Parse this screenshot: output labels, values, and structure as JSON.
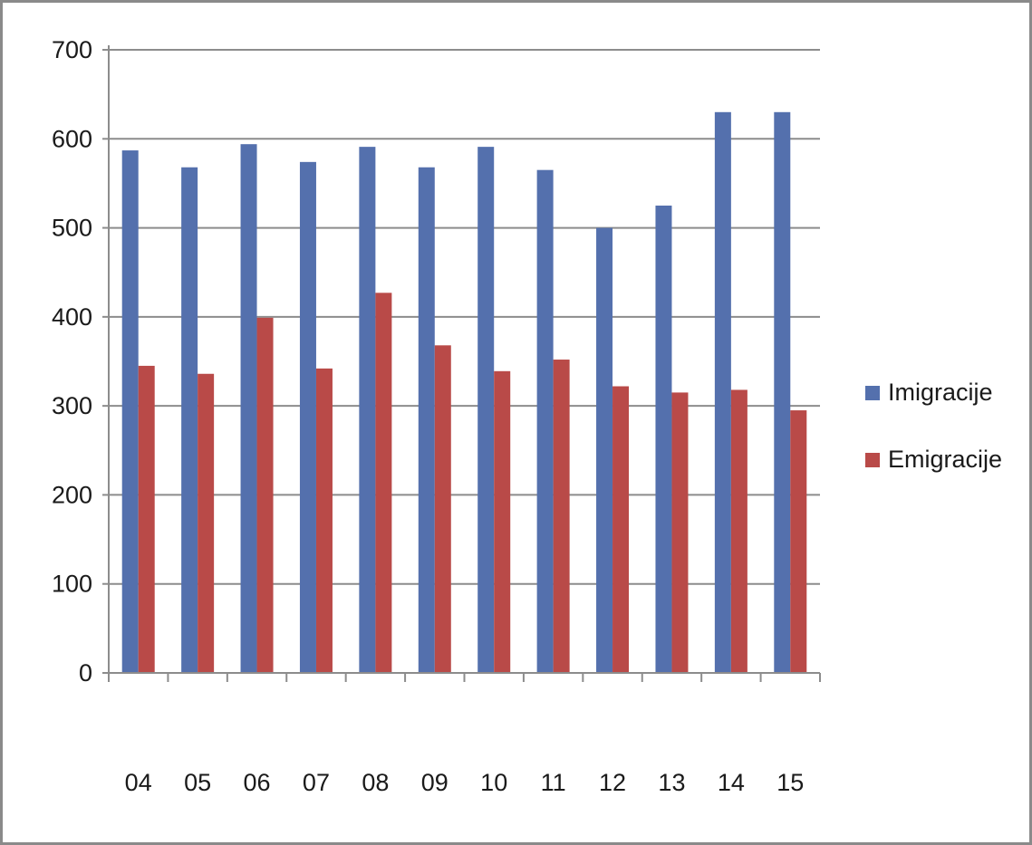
{
  "chart_data": {
    "type": "bar",
    "categories": [
      "04",
      "05",
      "06",
      "07",
      "08",
      "09",
      "10",
      "11",
      "12",
      "13",
      "14",
      "15"
    ],
    "series": [
      {
        "name": "Imigracije",
        "color": "#5470ad",
        "values": [
          587,
          568,
          594,
          574,
          591,
          568,
          591,
          565,
          500,
          525,
          630,
          630
        ]
      },
      {
        "name": "Emigracije",
        "color": "#b94a48",
        "values": [
          345,
          336,
          399,
          342,
          427,
          368,
          339,
          352,
          322,
          315,
          318,
          295
        ]
      }
    ],
    "ylim": [
      0,
      700
    ],
    "yticks": [
      0,
      100,
      200,
      300,
      400,
      500,
      600,
      700
    ],
    "grid": true,
    "legend": "right"
  }
}
